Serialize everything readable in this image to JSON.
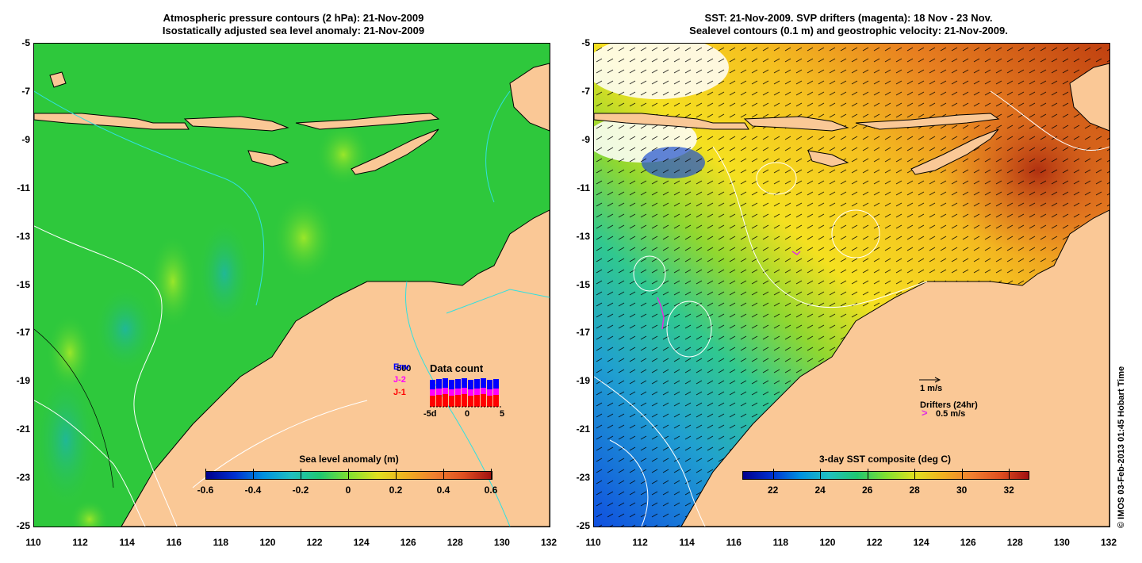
{
  "left_panel": {
    "title_line1": "Atmospheric pressure contours (2 hPa): 21-Nov-2009",
    "title_line2": "Isostatically adjusted sea level anomaly: 21-Nov-2009",
    "y_ticks": [
      "-5",
      "-7",
      "-9",
      "-11",
      "-13",
      "-15",
      "-17",
      "-19",
      "-21",
      "-23",
      "-25"
    ],
    "x_ticks": [
      "110",
      "112",
      "114",
      "116",
      "118",
      "120",
      "122",
      "124",
      "126",
      "128",
      "130",
      "132"
    ],
    "colorbar": {
      "title": "Sea level anomaly (m)",
      "ticks": [
        "-0.6",
        "-0.4",
        "-0.2",
        "0",
        "0.2",
        "0.4",
        "0.6"
      ],
      "range": [
        -0.6,
        0.6
      ]
    },
    "data_count": {
      "title": "Data count",
      "top_value": "500",
      "legend": [
        "Env",
        "J-2",
        "J-1"
      ],
      "legend_colors": [
        "#0000ff",
        "#ff00ff",
        "#ff0000"
      ],
      "axis_ticks": [
        "-5d",
        "0",
        "5"
      ]
    }
  },
  "right_panel": {
    "title_line1": "SST: 21-Nov-2009. SVP drifters (magenta): 18 Nov - 23 Nov.",
    "title_line2": "Sealevel contours (0.1 m) and geostrophic velocity: 21-Nov-2009.",
    "y_ticks": [
      "-5",
      "-7",
      "-9",
      "-11",
      "-13",
      "-15",
      "-17",
      "-19",
      "-21",
      "-23",
      "-25"
    ],
    "x_ticks": [
      "110",
      "112",
      "114",
      "116",
      "118",
      "120",
      "122",
      "124",
      "126",
      "128",
      "130",
      "132"
    ],
    "colorbar": {
      "title": "3-day SST composite (deg C)",
      "ticks": [
        "22",
        "24",
        "26",
        "28",
        "30",
        "32"
      ],
      "range": [
        20.7,
        32.8
      ]
    },
    "velocity_scale": "1 m/s",
    "drifters_label": "Drifters (24hr)",
    "drifters_scale": "0.5 m/s"
  },
  "credit": "© IMOS 03-Feb-2013 01:45 Hobart Time",
  "colors": {
    "land": "#fac896",
    "sla_base": "#2ec83c",
    "sst_warm": "#f0a010",
    "sst_hot": "#c84010",
    "sst_mid": "#f5e020",
    "sst_cool": "#30c8a0",
    "sst_cold": "#1060e0",
    "coast": "#000000",
    "contour_cyan": "#30e0e0"
  }
}
